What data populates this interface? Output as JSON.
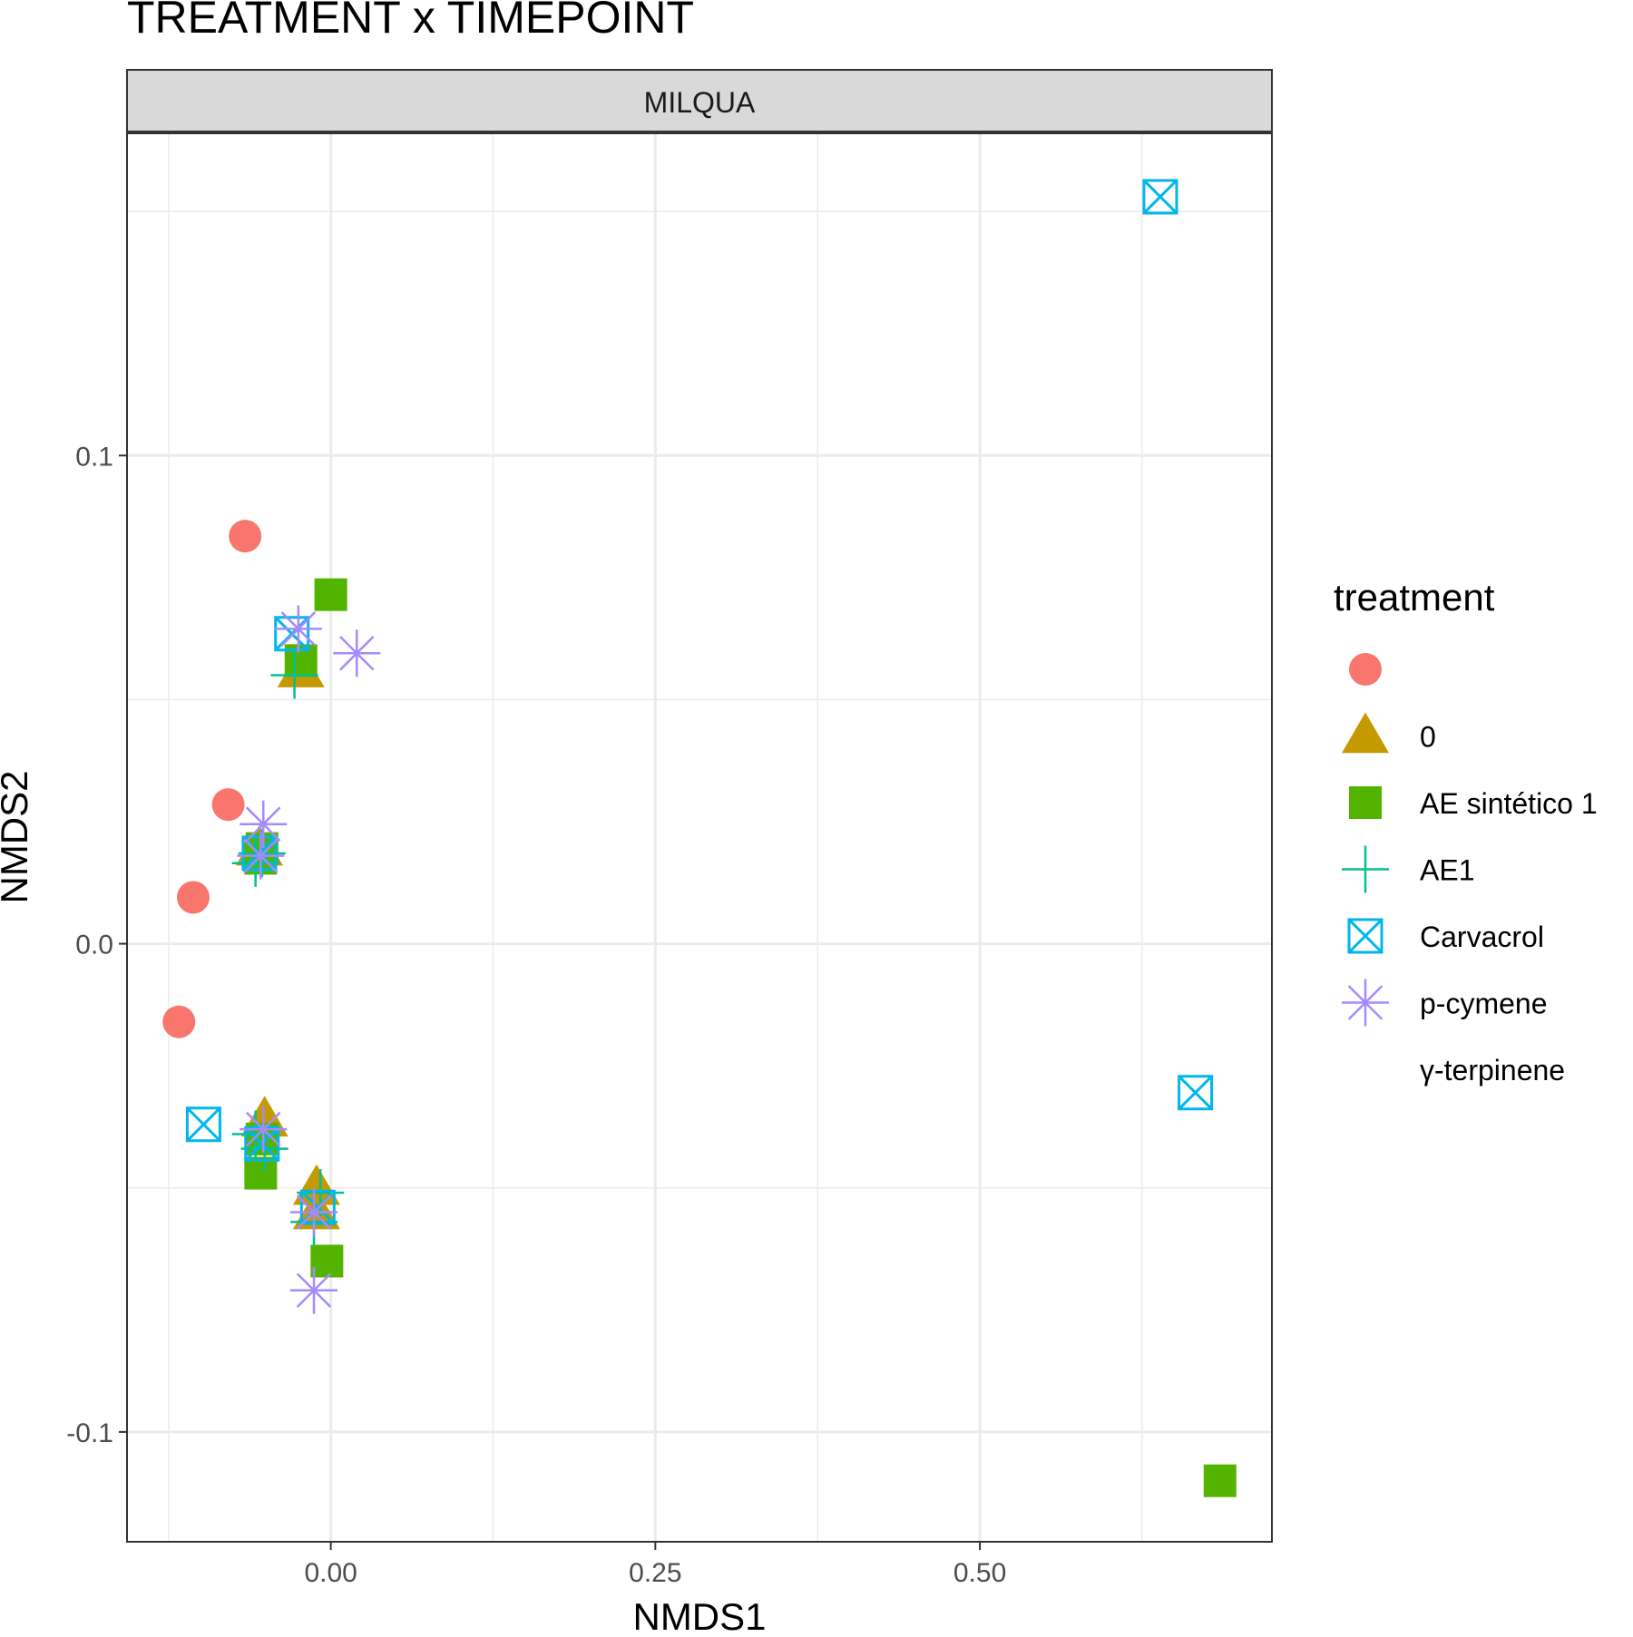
{
  "chart_data": {
    "type": "scatter",
    "title": "TREATMENT x TIMEPOINT",
    "facet_label": "MILQUA",
    "xlabel": "NMDS1",
    "ylabel": "NMDS2",
    "xlim": [
      -0.157,
      0.725
    ],
    "ylim": [
      -0.1225,
      0.166
    ],
    "x_ticks": [
      0.0,
      0.25,
      0.5
    ],
    "x_tick_labels": [
      "0.00",
      "0.25",
      "0.50"
    ],
    "y_ticks": [
      -0.1,
      0.0,
      0.1
    ],
    "y_tick_labels": [
      "-0.1",
      "0.0",
      "0.1"
    ],
    "grid": true,
    "legend_title": "treatment",
    "legend_position": "right",
    "series": [
      {
        "name": "",
        "shape": "circle",
        "color": "#F8766D",
        "points": [
          [
            -0.066,
            0.0835
          ],
          [
            -0.079,
            0.0285
          ],
          [
            -0.106,
            0.0095
          ],
          [
            -0.117,
            -0.016
          ]
        ]
      },
      {
        "name": "0",
        "shape": "triangle",
        "color": "#C49A00",
        "points": [
          [
            -0.023,
            0.056
          ],
          [
            -0.055,
            0.0195
          ],
          [
            -0.051,
            -0.036
          ],
          [
            -0.011,
            -0.05
          ],
          [
            -0.011,
            -0.055
          ]
        ]
      },
      {
        "name": "AE sintético 1",
        "shape": "square",
        "color": "#53B400",
        "points": [
          [
            0.0,
            0.0715
          ],
          [
            -0.023,
            0.058
          ],
          [
            -0.053,
            0.0195
          ],
          [
            -0.054,
            0.0175
          ],
          [
            -0.053,
            -0.04
          ],
          [
            -0.054,
            -0.047
          ],
          [
            -0.003,
            -0.065
          ],
          [
            0.685,
            -0.11
          ]
        ]
      },
      {
        "name": "AE1",
        "shape": "plus",
        "color": "#00C094",
        "points": [
          [
            -0.028,
            0.055
          ],
          [
            -0.053,
            0.0185
          ],
          [
            -0.058,
            0.0165
          ],
          [
            -0.058,
            -0.039
          ],
          [
            -0.051,
            -0.042
          ],
          [
            -0.008,
            -0.051
          ],
          [
            -0.013,
            -0.057
          ]
        ]
      },
      {
        "name": "Carvacrol",
        "shape": "square-cross",
        "color": "#00B6EB",
        "points": [
          [
            0.639,
            0.153
          ],
          [
            -0.03,
            0.0635
          ],
          [
            -0.055,
            0.0185
          ],
          [
            -0.098,
            -0.037
          ],
          [
            0.666,
            -0.0305
          ],
          [
            -0.053,
            -0.041
          ],
          [
            -0.01,
            -0.054
          ]
        ]
      },
      {
        "name": "p-cymene",
        "shape": "asterisk",
        "color": "#A58AFF",
        "points": [
          [
            0.02,
            0.0595
          ],
          [
            -0.025,
            0.0645
          ],
          [
            -0.052,
            0.0245
          ],
          [
            -0.054,
            0.018
          ],
          [
            -0.052,
            -0.038
          ],
          [
            -0.013,
            -0.055
          ],
          [
            -0.013,
            -0.071
          ]
        ]
      },
      {
        "name": "γ-terpinene",
        "shape": "none",
        "color": "#FB61D7",
        "points": []
      }
    ]
  }
}
